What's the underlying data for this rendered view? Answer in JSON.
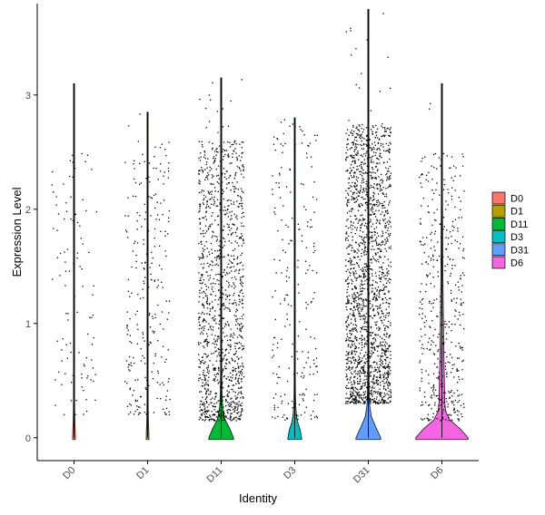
{
  "chart_data": {
    "type": "violin",
    "xlabel": "Identity",
    "ylabel": "Expression Level",
    "ylim": [
      -0.2,
      3.8
    ],
    "y_ticks": [
      0,
      1,
      2,
      3
    ],
    "x_tick_rotation_deg": -45,
    "grid": false,
    "legend_position": "right",
    "point_color": "#000000",
    "groups": [
      {
        "name": "D0",
        "color": "#F8766D",
        "n_points": 700,
        "nonzero_range": [
          0.2,
          2.5
        ],
        "max": 3.1,
        "frac_zero": 0.85,
        "violin_peak_width": 0.05
      },
      {
        "name": "D1",
        "color": "#B79F00",
        "n_points": 1700,
        "nonzero_range": [
          0.2,
          2.6
        ],
        "max": 2.85,
        "frac_zero": 0.85,
        "violin_peak_width": 0.05
      },
      {
        "name": "D11",
        "color": "#00BA38",
        "n_points": 2800,
        "nonzero_range": [
          0.15,
          2.6
        ],
        "max": 3.15,
        "frac_zero": 0.55,
        "violin_peak_width": 0.45
      },
      {
        "name": "D3",
        "color": "#00BFC4",
        "n_points": 1100,
        "nonzero_range": [
          0.15,
          2.7
        ],
        "max": 2.8,
        "frac_zero": 0.8,
        "violin_peak_width": 0.25
      },
      {
        "name": "D31",
        "color": "#619CFF",
        "n_points": 3400,
        "nonzero_range": [
          0.3,
          2.75
        ],
        "max": 3.75,
        "frac_zero": 0.45,
        "violin_peak_width": 0.45
      },
      {
        "name": "D6",
        "color": "#F564E3",
        "n_points": 1000,
        "nonzero_range": [
          0.15,
          2.5
        ],
        "max": 3.1,
        "frac_zero": 0.55,
        "violin_peak_width": 0.95
      }
    ]
  }
}
